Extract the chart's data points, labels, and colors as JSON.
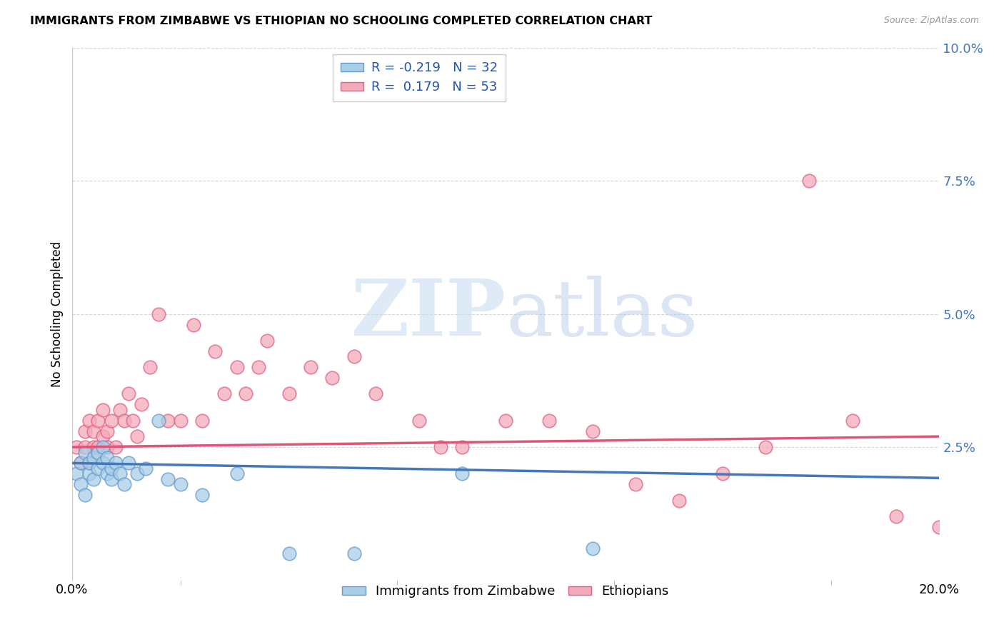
{
  "title": "IMMIGRANTS FROM ZIMBABWE VS ETHIOPIAN NO SCHOOLING COMPLETED CORRELATION CHART",
  "source": "Source: ZipAtlas.com",
  "ylabel": "No Schooling Completed",
  "xlim": [
    0.0,
    0.2
  ],
  "ylim": [
    0.0,
    0.1
  ],
  "color_zimbabwe": "#A8CEE8",
  "color_ethiopian": "#F4AABB",
  "edge_zimbabwe": "#6699CC",
  "edge_ethiopian": "#E06080",
  "line_zimbabwe": "#4477BB",
  "line_ethiopian": "#DD5577",
  "watermark_zip_color": "#D5E8F5",
  "watermark_atlas_color": "#C5DCF0",
  "zimbabwe_x": [
    0.001,
    0.002,
    0.002,
    0.003,
    0.003,
    0.004,
    0.004,
    0.005,
    0.005,
    0.006,
    0.006,
    0.007,
    0.007,
    0.008,
    0.008,
    0.009,
    0.009,
    0.01,
    0.011,
    0.012,
    0.013,
    0.015,
    0.017,
    0.02,
    0.022,
    0.025,
    0.03,
    0.038,
    0.05,
    0.065,
    0.09,
    0.12
  ],
  "zimbabwe_y": [
    0.02,
    0.018,
    0.022,
    0.016,
    0.024,
    0.02,
    0.022,
    0.019,
    0.023,
    0.021,
    0.024,
    0.022,
    0.025,
    0.02,
    0.023,
    0.019,
    0.021,
    0.022,
    0.02,
    0.018,
    0.022,
    0.02,
    0.021,
    0.03,
    0.019,
    0.018,
    0.016,
    0.02,
    0.005,
    0.005,
    0.02,
    0.006
  ],
  "ethiopian_x": [
    0.001,
    0.002,
    0.003,
    0.003,
    0.004,
    0.004,
    0.005,
    0.005,
    0.006,
    0.006,
    0.007,
    0.007,
    0.008,
    0.008,
    0.009,
    0.01,
    0.011,
    0.012,
    0.013,
    0.014,
    0.015,
    0.016,
    0.018,
    0.02,
    0.022,
    0.025,
    0.028,
    0.03,
    0.033,
    0.035,
    0.038,
    0.04,
    0.043,
    0.045,
    0.05,
    0.055,
    0.06,
    0.065,
    0.07,
    0.08,
    0.09,
    0.1,
    0.11,
    0.12,
    0.13,
    0.14,
    0.15,
    0.16,
    0.17,
    0.18,
    0.19,
    0.2,
    0.085
  ],
  "ethiopian_y": [
    0.025,
    0.022,
    0.028,
    0.025,
    0.03,
    0.022,
    0.025,
    0.028,
    0.03,
    0.025,
    0.027,
    0.032,
    0.028,
    0.025,
    0.03,
    0.025,
    0.032,
    0.03,
    0.035,
    0.03,
    0.027,
    0.033,
    0.04,
    0.05,
    0.03,
    0.03,
    0.048,
    0.03,
    0.043,
    0.035,
    0.04,
    0.035,
    0.04,
    0.045,
    0.035,
    0.04,
    0.038,
    0.042,
    0.035,
    0.03,
    0.025,
    0.03,
    0.03,
    0.028,
    0.018,
    0.015,
    0.02,
    0.025,
    0.075,
    0.03,
    0.012,
    0.01,
    0.025
  ],
  "legend_entries": [
    {
      "label": "R = -0.219   N = 32",
      "fc": "#A8CEE8",
      "ec": "#6699CC"
    },
    {
      "label": "R =  0.179   N = 53",
      "fc": "#F4AABB",
      "ec": "#E06080"
    }
  ],
  "bottom_legend": [
    "Immigrants from Zimbabwe",
    "Ethiopians"
  ]
}
